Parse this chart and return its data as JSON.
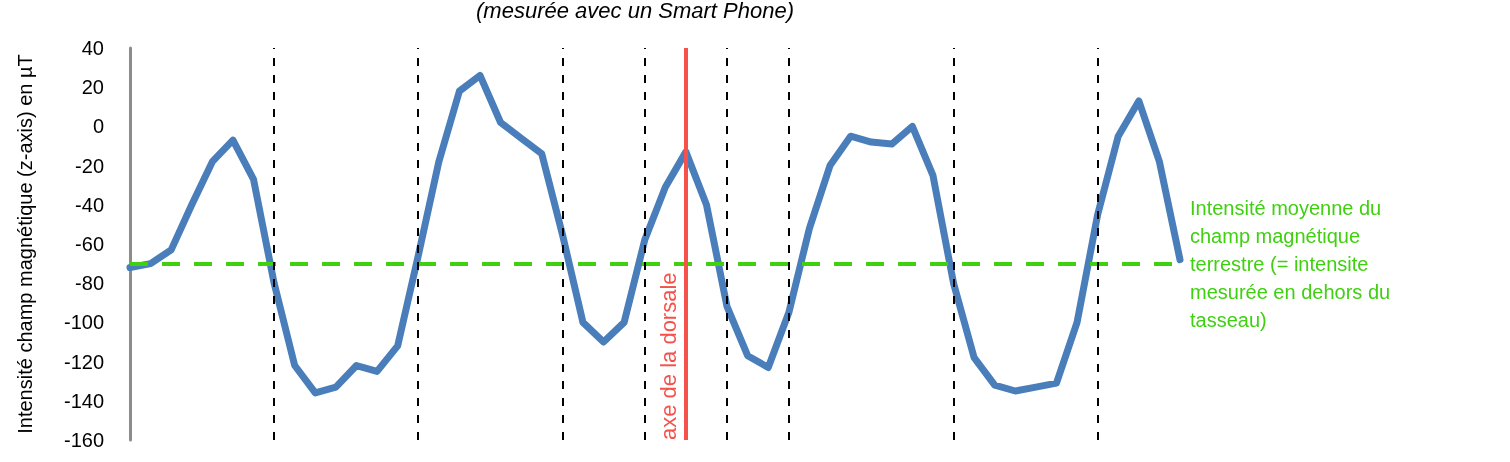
{
  "chart_data": {
    "type": "line",
    "title": "(mesurée avec un Smart Phone)",
    "ylabel": "Intensité champ magnétique (z-axis) en µT",
    "categories": [
      null,
      null,
      null,
      null,
      null,
      null,
      null,
      null,
      null,
      null,
      null,
      null,
      null,
      null,
      null,
      null,
      null,
      null,
      null,
      null,
      null,
      null,
      null,
      null,
      null,
      null,
      null,
      null,
      null,
      null,
      null,
      null,
      null,
      null,
      null,
      null,
      null,
      null,
      null,
      null,
      null,
      null,
      null,
      null,
      null,
      null,
      null,
      null,
      null,
      null,
      null,
      null
    ],
    "ylim": [
      -160,
      40
    ],
    "yticks": [
      -160,
      -140,
      -120,
      -100,
      -80,
      -60,
      -40,
      -20,
      0,
      20,
      40
    ],
    "tick_labels": "y",
    "grid": "x",
    "marker": "none",
    "line_style": "solid",
    "series": [
      {
        "color": "#4a7ebb",
        "values": [
          -72,
          -70,
          -63,
          -40,
          -18,
          -7,
          -27,
          -80,
          -122,
          -136,
          -133,
          -122,
          -125,
          -112,
          -66,
          -18,
          18,
          26,
          2,
          -6,
          -14,
          -55,
          -100,
          -110,
          -100,
          -58,
          -31,
          -13,
          -40,
          -92,
          -117,
          -123,
          -95,
          -52,
          -20,
          -5,
          -8,
          -9,
          0,
          -25,
          -80,
          -118,
          -132,
          -135,
          -133,
          -131,
          -100,
          -45,
          -5,
          13,
          -18,
          -68
        ]
      }
    ],
    "annotations": [
      "axe de la dorsale"
    ],
    "ref_lines": [
      {
        "axis": "y",
        "value": -70,
        "label": "Intensité moyenne du champ magnétique terrestre (= intensite mesurée en dehors du tasseau)",
        "color": "#3fd010",
        "line_style": "dashed"
      }
    ]
  }
}
